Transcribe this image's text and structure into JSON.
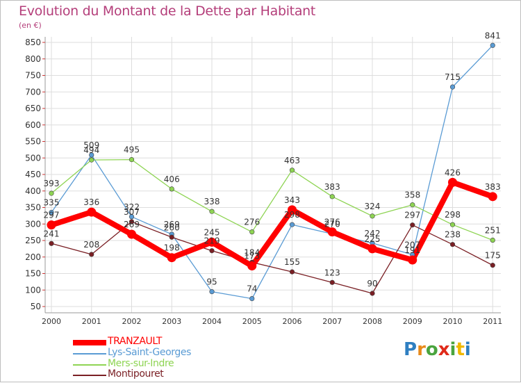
{
  "title": "Evolution du Montant de la Dette par Habitant",
  "subtitle": "(en €)",
  "chart_data": {
    "type": "line",
    "x": [
      "2000",
      "2001",
      "2002",
      "2003",
      "2004",
      "2005",
      "2006",
      "2007",
      "2008",
      "2009",
      "2010",
      "2011"
    ],
    "yticks": [
      50,
      100,
      150,
      200,
      250,
      300,
      350,
      400,
      450,
      500,
      550,
      600,
      650,
      700,
      750,
      800,
      850
    ],
    "ylim": [
      40,
      870
    ],
    "grid": true,
    "legend_position": "bottom-left",
    "series": [
      {
        "name": "TRANZAULT",
        "color": "#ff0000",
        "thick": true,
        "values": [
          297,
          336,
          269,
          198,
          245,
          173,
          343,
          276,
          225,
          191,
          426,
          383
        ],
        "labels": [
          "297",
          "336",
          "269",
          "198",
          "245",
          "173",
          "343",
          "276",
          "225",
          "191",
          "426",
          "383"
        ]
      },
      {
        "name": "Lys-Saint-Georges",
        "color": "#5a9bd4",
        "thick": false,
        "values": [
          335,
          509,
          322,
          269,
          95,
          74,
          298,
          270,
          242,
          207,
          715,
          841
        ],
        "labels": [
          "335",
          "509",
          "322",
          "269",
          "95",
          "74",
          "298",
          "270",
          "242",
          "207",
          "715",
          "841"
        ]
      },
      {
        "name": "Mers-sur-Indre",
        "color": "#8ed453",
        "thick": false,
        "values": [
          393,
          494,
          495,
          406,
          338,
          276,
          463,
          383,
          324,
          358,
          298,
          251
        ],
        "labels": [
          "393",
          "494",
          "495",
          "406",
          "338",
          "276",
          "463",
          "383",
          "324",
          "358",
          "298",
          "251"
        ]
      },
      {
        "name": "Montipouret",
        "color": "#7a1f24",
        "thick": false,
        "values": [
          241,
          208,
          307,
          260,
          219,
          184,
          155,
          123,
          90,
          297,
          238,
          175
        ],
        "labels": [
          "241",
          "208",
          "307",
          "260",
          "219",
          "184",
          "155",
          "123",
          "90",
          "297",
          "238",
          "175"
        ]
      }
    ]
  },
  "colors": {
    "title": "#b43e7a",
    "grid": "#dddddd",
    "axis": "#555555"
  },
  "logo": {
    "letters": [
      "P",
      "r",
      "o",
      "x",
      "i",
      "t",
      "i"
    ],
    "colors": [
      "#2e7fc1",
      "#e88a1a",
      "#4aa43e",
      "#e02a1a",
      "#4aa43e",
      "#f0b800",
      "#2e7fc1"
    ]
  }
}
